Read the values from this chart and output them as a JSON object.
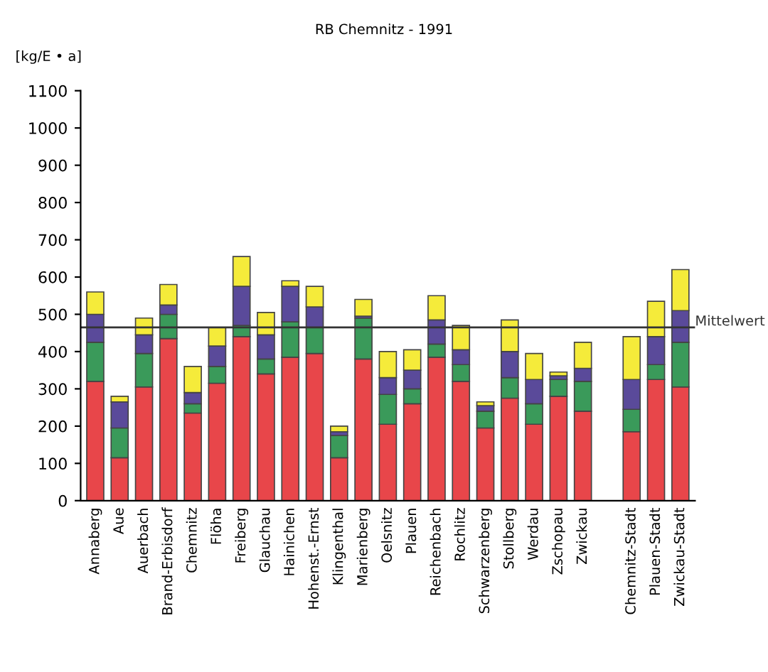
{
  "chart_data": {
    "type": "bar",
    "title": "RB Chemnitz - 1991",
    "ylabel": "[kg/E • a]",
    "stacked": true,
    "categories": [
      "Annaberg",
      "Aue",
      "Auerbach",
      "Brand-Erbisdorf",
      "Chemnitz",
      "Flöha",
      "Freiberg",
      "Glauchau",
      "Hainichen",
      "Hohenst.-Ernst",
      "Klingenthal",
      "Marienberg",
      "Oelsnitz",
      "Plauen",
      "Reichenbach",
      "Rochlitz",
      "Schwarzenberg",
      "Stollberg",
      "Werdau",
      "Zschopau",
      "Zwickau",
      null,
      "Chemnitz-Stadt",
      "Plauen-Stadt",
      "Zwickau-Stadt"
    ],
    "series": [
      {
        "color": "#e8464a",
        "values": [
          320,
          115,
          305,
          435,
          235,
          315,
          440,
          340,
          385,
          395,
          115,
          380,
          205,
          260,
          385,
          320,
          195,
          275,
          205,
          280,
          240,
          null,
          185,
          325,
          305
        ]
      },
      {
        "color": "#3a9a5a",
        "values": [
          105,
          80,
          90,
          65,
          25,
          45,
          30,
          40,
          95,
          70,
          60,
          110,
          80,
          40,
          35,
          45,
          45,
          55,
          55,
          45,
          80,
          null,
          60,
          40,
          120
        ]
      },
      {
        "color": "#5a4a9a",
        "values": [
          75,
          70,
          50,
          25,
          30,
          55,
          105,
          65,
          95,
          55,
          10,
          5,
          45,
          50,
          65,
          40,
          15,
          70,
          65,
          10,
          35,
          null,
          80,
          75,
          85
        ]
      },
      {
        "color": "#f5eb3a",
        "values": [
          60,
          15,
          45,
          55,
          70,
          50,
          80,
          60,
          15,
          55,
          15,
          45,
          70,
          55,
          65,
          65,
          10,
          85,
          70,
          10,
          70,
          null,
          115,
          95,
          110
        ]
      }
    ],
    "ylim": [
      0,
      1100
    ],
    "yticks": [
      0,
      100,
      200,
      300,
      400,
      500,
      600,
      700,
      800,
      900,
      1000,
      1100
    ],
    "ref_lines": [
      {
        "axis": "y",
        "value": 465,
        "label": "Mittelwert",
        "color": "#333333"
      }
    ],
    "grid": false
  }
}
